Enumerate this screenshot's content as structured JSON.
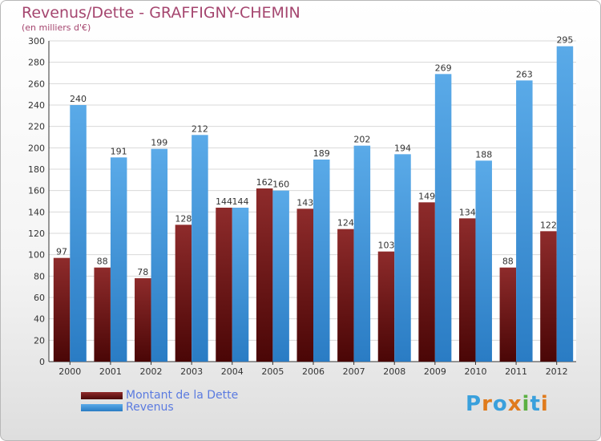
{
  "title": "Revenus/Dette - GRAFFIGNY-CHEMIN",
  "subtitle": "(en milliers d'€)",
  "colors": {
    "debt": "#7a1c1c",
    "revenue": "#3a8fd6",
    "title": "#a5466f",
    "legend_text": "#5b7be0"
  },
  "chart_data": {
    "type": "bar",
    "title": "Revenus/Dette - GRAFFIGNY-CHEMIN",
    "ylabel": "(en milliers d'€)",
    "ylim": [
      0,
      300
    ],
    "yticks": [
      0,
      20,
      40,
      60,
      80,
      100,
      120,
      140,
      160,
      180,
      200,
      220,
      240,
      260,
      280,
      300
    ],
    "grid": true,
    "legend_position": "bottom-left",
    "categories": [
      "2000",
      "2001",
      "2002",
      "2003",
      "2004",
      "2005",
      "2006",
      "2007",
      "2008",
      "2009",
      "2010",
      "2011",
      "2012"
    ],
    "series": [
      {
        "name": "Montant de la Dette",
        "color": "#7a1c1c",
        "values": [
          97,
          88,
          78,
          128,
          144,
          162,
          143,
          124,
          103,
          149,
          134,
          88,
          122
        ]
      },
      {
        "name": "Revenus",
        "color": "#3a8fd6",
        "values": [
          240,
          191,
          199,
          212,
          144,
          160,
          189,
          202,
          194,
          269,
          188,
          263,
          295
        ]
      }
    ]
  },
  "logo": {
    "text": "Proxiti",
    "letters": [
      "P",
      "r",
      "o",
      "x",
      "i",
      "t",
      "i"
    ],
    "colors": [
      "#3aa0dc",
      "#e07b1c",
      "#3aa0dc",
      "#e07b1c",
      "#5bb042",
      "#3aa0dc",
      "#e07b1c"
    ]
  }
}
